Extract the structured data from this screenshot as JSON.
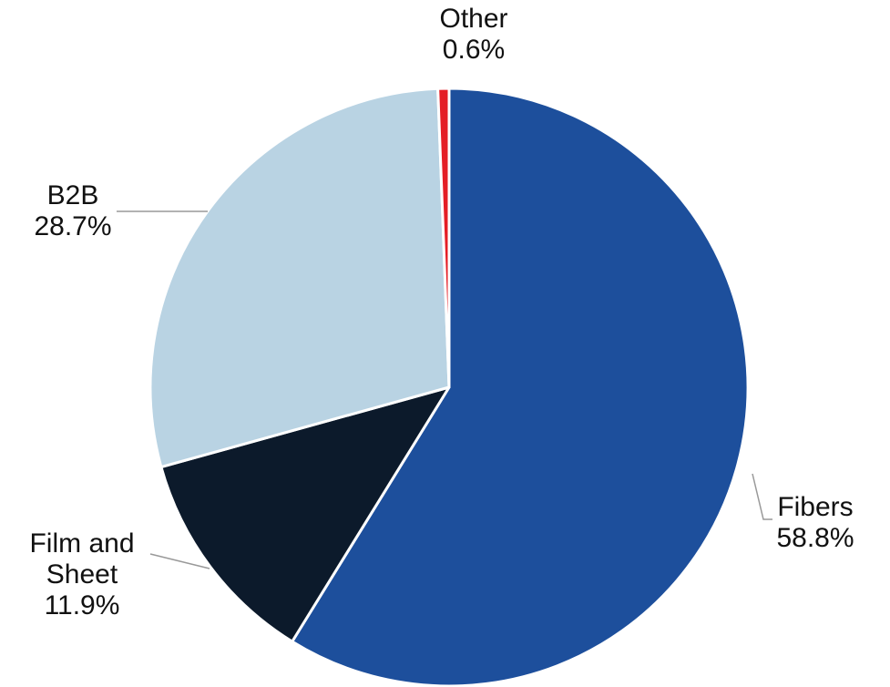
{
  "chart_data": {
    "type": "pie",
    "categories": [
      "Fibers",
      "Film and Sheet",
      "B2B",
      "Other"
    ],
    "values": [
      58.8,
      11.9,
      28.7,
      0.6
    ],
    "value_labels": [
      "58.8%",
      "11.9%",
      "28.7%",
      "0.6%"
    ],
    "colors": [
      "#1d4f9c",
      "#0c1a2b",
      "#b9d3e3",
      "#e41e26"
    ]
  }
}
